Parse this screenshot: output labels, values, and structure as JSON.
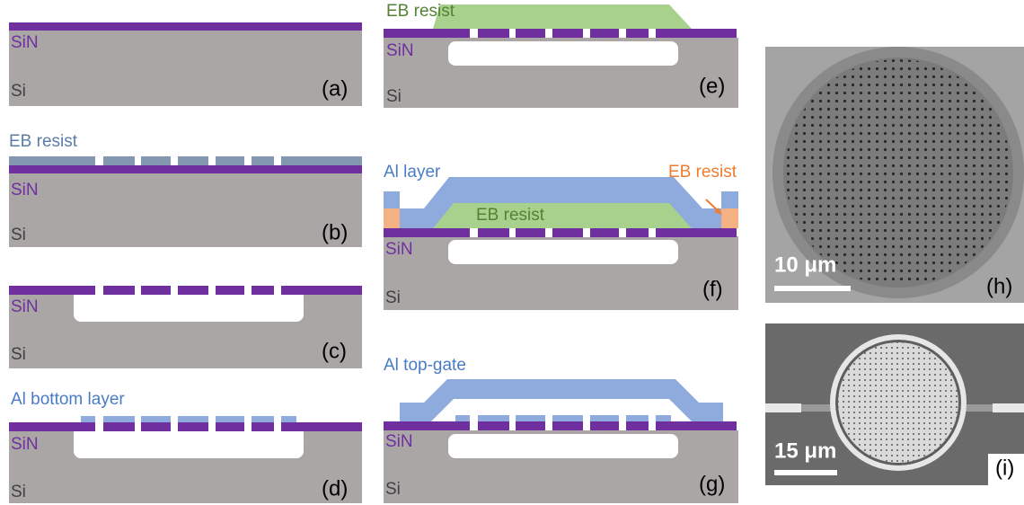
{
  "panels": [
    {
      "id": "(a)",
      "sin": "SiN",
      "si": "Si"
    },
    {
      "id": "(b)",
      "top": "EB resist",
      "sin": "SiN",
      "si": "Si"
    },
    {
      "id": "(c)",
      "sin": "SiN",
      "si": "Si"
    },
    {
      "id": "(d)",
      "top": "Al bottom layer",
      "sin": "SiN",
      "si": "Si"
    },
    {
      "id": "(e)",
      "top": "EB resist",
      "sin": "SiN",
      "si": "Si"
    },
    {
      "id": "(f)",
      "top": "Al layer",
      "side": "EB resist",
      "inner": "EB resist",
      "sin": "SiN",
      "si": "Si"
    },
    {
      "id": "(g)",
      "top": "Al top-gate",
      "sin": "SiN",
      "si": "Si"
    },
    {
      "id": "(h)",
      "scale": "10 μm"
    },
    {
      "id": "(i)",
      "scale": "15 μm"
    }
  ]
}
